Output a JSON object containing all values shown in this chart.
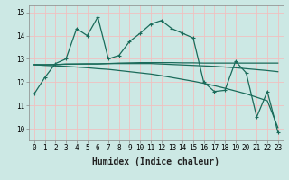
{
  "title": "",
  "xlabel": "Humidex (Indice chaleur)",
  "bg_color": "#cce8e4",
  "grid_color": "#f0c0c0",
  "line_color": "#1a6b5a",
  "x_values": [
    0,
    1,
    2,
    3,
    4,
    5,
    6,
    7,
    8,
    9,
    10,
    11,
    12,
    13,
    14,
    15,
    16,
    17,
    18,
    19,
    20,
    21,
    22,
    23
  ],
  "series1": [
    11.5,
    12.2,
    12.8,
    13.0,
    14.3,
    14.0,
    14.8,
    13.0,
    13.15,
    13.75,
    14.1,
    14.5,
    14.65,
    14.3,
    14.1,
    13.9,
    12.0,
    11.6,
    11.65,
    12.9,
    12.4,
    10.5,
    11.6,
    9.85
  ],
  "series2": [
    12.75,
    12.75,
    12.75,
    12.78,
    12.78,
    12.78,
    12.78,
    12.8,
    12.82,
    12.83,
    12.84,
    12.84,
    12.84,
    12.84,
    12.83,
    12.83,
    12.82,
    12.82,
    12.82,
    12.82,
    12.82,
    12.82,
    12.82,
    12.82
  ],
  "series3": [
    12.75,
    12.75,
    12.76,
    12.77,
    12.78,
    12.79,
    12.79,
    12.8,
    12.8,
    12.8,
    12.8,
    12.8,
    12.78,
    12.76,
    12.74,
    12.72,
    12.7,
    12.68,
    12.65,
    12.62,
    12.58,
    12.54,
    12.5,
    12.45
  ],
  "series4": [
    12.75,
    12.72,
    12.7,
    12.68,
    12.65,
    12.62,
    12.58,
    12.55,
    12.5,
    12.45,
    12.4,
    12.35,
    12.28,
    12.2,
    12.12,
    12.04,
    11.95,
    11.85,
    11.74,
    11.62,
    11.5,
    11.35,
    11.2,
    10.05
  ],
  "ylim": [
    9.5,
    15.3
  ],
  "xlim": [
    -0.5,
    23.5
  ],
  "yticks": [
    10,
    11,
    12,
    13,
    14,
    15
  ],
  "xticks": [
    0,
    1,
    2,
    3,
    4,
    5,
    6,
    7,
    8,
    9,
    10,
    11,
    12,
    13,
    14,
    15,
    16,
    17,
    18,
    19,
    20,
    21,
    22,
    23
  ],
  "xtick_labels": [
    "0",
    "1",
    "2",
    "3",
    "4",
    "5",
    "6",
    "7",
    "8",
    "9",
    "10",
    "11",
    "12",
    "13",
    "14",
    "15",
    "16",
    "17",
    "18",
    "19",
    "20",
    "21",
    "22",
    "23"
  ],
  "line_width": 0.9,
  "xlabel_fontsize": 7,
  "tick_fontsize": 5.5
}
